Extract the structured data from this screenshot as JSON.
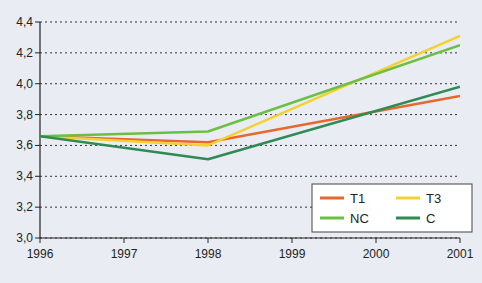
{
  "chart_data": {
    "type": "line",
    "x": [
      1996,
      1998,
      2001
    ],
    "series": [
      {
        "name": "T1",
        "color": "#e8672c",
        "values": [
          3.66,
          3.62,
          3.92
        ]
      },
      {
        "name": "T3",
        "color": "#f2d230",
        "values": [
          3.66,
          3.6,
          4.31
        ]
      },
      {
        "name": "NC",
        "color": "#6cbf45",
        "values": [
          3.66,
          3.69,
          4.25
        ]
      },
      {
        "name": "C",
        "color": "#2f8a55",
        "values": [
          3.66,
          3.51,
          3.98
        ]
      }
    ],
    "xlim": [
      1996,
      2001
    ],
    "xticks": [
      1996,
      1997,
      1998,
      1999,
      2000,
      2001
    ],
    "ylim": [
      3.0,
      4.4
    ],
    "yticks": [
      {
        "value": 3.0,
        "label": "3,0"
      },
      {
        "value": 3.2,
        "label": "3,2"
      },
      {
        "value": 3.4,
        "label": "3,4"
      },
      {
        "value": 3.6,
        "label": "3,6"
      },
      {
        "value": 3.8,
        "label": "3,8"
      },
      {
        "value": 4.0,
        "label": "4,0"
      },
      {
        "value": 4.2,
        "label": "4,2"
      },
      {
        "value": 4.4,
        "label": "4,4"
      }
    ],
    "grid": true,
    "legend": "lower right"
  }
}
